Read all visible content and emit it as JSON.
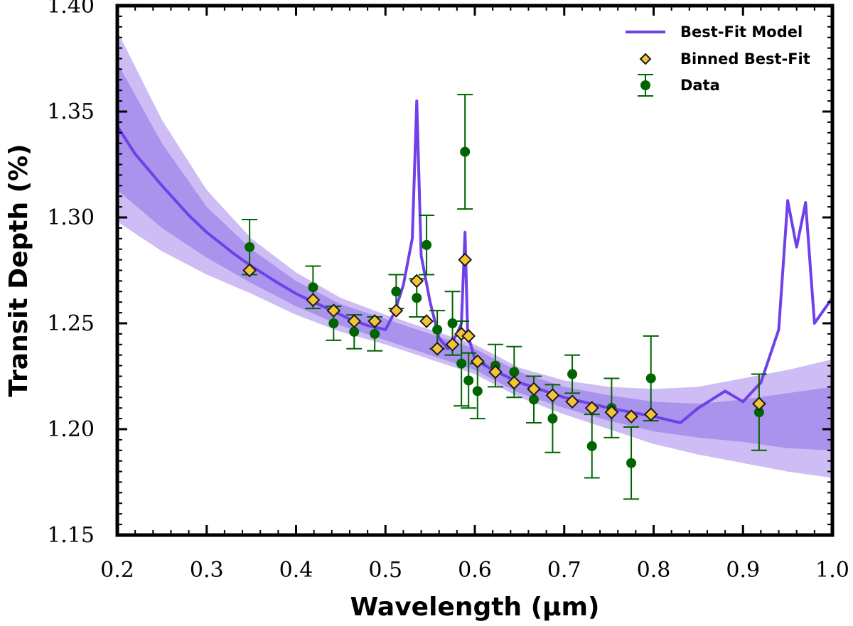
{
  "chart_data": {
    "type": "line",
    "title": "",
    "xlabel": "Wavelength (μm)",
    "ylabel": "Transit Depth (%)",
    "xlim": [
      0.2,
      1.0
    ],
    "ylim": [
      1.15,
      1.4
    ],
    "xticks": [
      0.2,
      0.3,
      0.4,
      0.5,
      0.6,
      0.7,
      0.8,
      0.9,
      1.0
    ],
    "xtick_labels": [
      "0.2",
      "0.3",
      "0.4",
      "0.5",
      "0.6",
      "0.7",
      "0.8",
      "0.9",
      "1.0"
    ],
    "yticks": [
      1.15,
      1.2,
      1.25,
      1.3,
      1.35,
      1.4
    ],
    "ytick_labels": [
      "1.15",
      "1.20",
      "1.25",
      "1.30",
      "1.35",
      "1.40"
    ],
    "legend_position": "top-right",
    "colors": {
      "model": "#7040e8",
      "band1": "#cdbdf4",
      "band2": "#a993ec",
      "binned_fill": "#f3c436",
      "data": "#006400"
    },
    "series": [
      {
        "name": "Best-Fit Model",
        "kind": "line",
        "x": [
          0.2,
          0.22,
          0.25,
          0.28,
          0.3,
          0.33,
          0.35,
          0.38,
          0.4,
          0.42,
          0.44,
          0.46,
          0.48,
          0.5,
          0.51,
          0.52,
          0.53,
          0.535,
          0.54,
          0.55,
          0.56,
          0.57,
          0.58,
          0.585,
          0.589,
          0.592,
          0.6,
          0.62,
          0.65,
          0.7,
          0.75,
          0.8,
          0.83,
          0.85,
          0.88,
          0.9,
          0.92,
          0.94,
          0.95,
          0.96,
          0.97,
          0.98,
          1.0
        ],
        "y": [
          1.343,
          1.33,
          1.315,
          1.301,
          1.293,
          1.283,
          1.277,
          1.269,
          1.264,
          1.26,
          1.256,
          1.252,
          1.249,
          1.247,
          1.255,
          1.268,
          1.29,
          1.355,
          1.282,
          1.26,
          1.243,
          1.238,
          1.245,
          1.25,
          1.293,
          1.245,
          1.233,
          1.228,
          1.222,
          1.215,
          1.21,
          1.206,
          1.203,
          1.21,
          1.218,
          1.213,
          1.222,
          1.247,
          1.308,
          1.286,
          1.307,
          1.25,
          1.262
        ]
      },
      {
        "name": "Binned Best-Fit",
        "kind": "marker",
        "x": [
          0.348,
          0.419,
          0.442,
          0.465,
          0.488,
          0.512,
          0.535,
          0.546,
          0.558,
          0.575,
          0.585,
          0.589,
          0.593,
          0.603,
          0.623,
          0.644,
          0.666,
          0.687,
          0.709,
          0.731,
          0.753,
          0.775,
          0.797,
          0.918
        ],
        "y": [
          1.275,
          1.261,
          1.256,
          1.251,
          1.251,
          1.256,
          1.27,
          1.251,
          1.238,
          1.24,
          1.245,
          1.28,
          1.244,
          1.232,
          1.227,
          1.222,
          1.219,
          1.216,
          1.213,
          1.21,
          1.208,
          1.206,
          1.207,
          1.212
        ]
      },
      {
        "name": "Data",
        "kind": "errorbar",
        "x": [
          0.348,
          0.419,
          0.442,
          0.465,
          0.488,
          0.512,
          0.535,
          0.546,
          0.558,
          0.575,
          0.585,
          0.589,
          0.593,
          0.603,
          0.623,
          0.644,
          0.666,
          0.687,
          0.709,
          0.731,
          0.753,
          0.775,
          0.797,
          0.918
        ],
        "y": [
          1.286,
          1.267,
          1.25,
          1.246,
          1.245,
          1.265,
          1.262,
          1.287,
          1.247,
          1.25,
          1.231,
          1.331,
          1.223,
          1.218,
          1.23,
          1.227,
          1.214,
          1.205,
          1.226,
          1.192,
          1.21,
          1.184,
          1.224,
          1.208
        ],
        "yerr": [
          0.013,
          0.01,
          0.008,
          0.008,
          0.008,
          0.008,
          0.009,
          0.014,
          0.009,
          0.015,
          0.02,
          0.027,
          0.013,
          0.013,
          0.01,
          0.012,
          0.011,
          0.016,
          0.009,
          0.015,
          0.014,
          0.017,
          0.02,
          0.018
        ]
      }
    ],
    "uncertainty_band": {
      "x": [
        0.2,
        0.25,
        0.3,
        0.35,
        0.4,
        0.45,
        0.5,
        0.55,
        0.6,
        0.65,
        0.7,
        0.75,
        0.8,
        0.85,
        0.9,
        0.95,
        1.0
      ],
      "inner_half_width": [
        0.03,
        0.02,
        0.012,
        0.008,
        0.006,
        0.005,
        0.005,
        0.005,
        0.005,
        0.005,
        0.005,
        0.006,
        0.007,
        0.008,
        0.01,
        0.013,
        0.015
      ],
      "outer_half_width": [
        0.045,
        0.031,
        0.02,
        0.013,
        0.01,
        0.008,
        0.007,
        0.007,
        0.007,
        0.007,
        0.008,
        0.01,
        0.013,
        0.016,
        0.02,
        0.024,
        0.028
      ]
    }
  }
}
